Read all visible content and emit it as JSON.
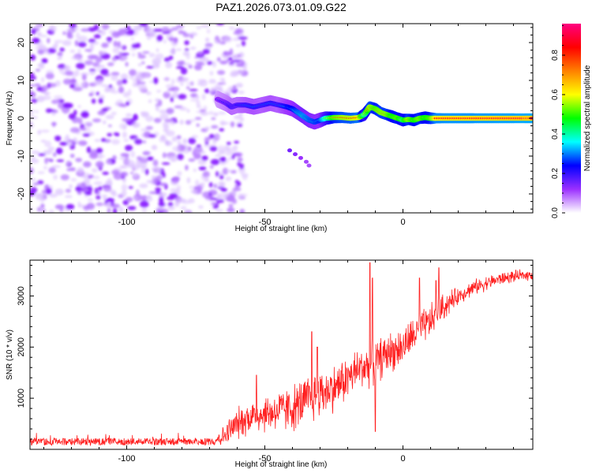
{
  "figure_title": "PAZ1.2026.073.01.09.G22",
  "chart_data": [
    {
      "type": "heatmap",
      "title": "PAZ1.2026.073.01.09.G22",
      "xlabel": "Height of straight line (km)",
      "ylabel": "Frequency (Hz)",
      "xlim": [
        -135,
        47
      ],
      "ylim": [
        -25,
        25
      ],
      "xticks": [
        -100,
        -50,
        0
      ],
      "yticks": [
        -20,
        -10,
        0,
        10,
        20
      ],
      "colorbar": {
        "label": "Normalized spectral amplitude",
        "range": [
          0,
          0.96
        ],
        "ticks": [
          0.0,
          0.2,
          0.4,
          0.6,
          0.8
        ],
        "tick_labels": [
          "0.0",
          "0.2",
          "0.4",
          "0.6",
          "0.8"
        ],
        "colormap": [
          "#ffffff",
          "#9b30ff",
          "#0000ff",
          "#00ffff",
          "#00ff00",
          "#ffff00",
          "#ff8000",
          "#ff0000",
          "#ff0080"
        ]
      },
      "noise_region": {
        "x_range": [
          -135,
          -63
        ],
        "freq_range": [
          -25,
          25
        ],
        "amplitude": 0.12
      },
      "ridge": [
        {
          "x": -67,
          "f": 5.0,
          "amp": 0.18
        },
        {
          "x": -64,
          "f": 4.0,
          "amp": 0.22
        },
        {
          "x": -62,
          "f": 3.0,
          "amp": 0.26
        },
        {
          "x": -60,
          "f": 3.5,
          "amp": 0.25
        },
        {
          "x": -57,
          "f": 3.5,
          "amp": 0.28
        },
        {
          "x": -54,
          "f": 3.0,
          "amp": 0.3
        },
        {
          "x": -51,
          "f": 3.5,
          "amp": 0.28
        },
        {
          "x": -48,
          "f": 4.0,
          "amp": 0.3
        },
        {
          "x": -45,
          "f": 3.5,
          "amp": 0.28
        },
        {
          "x": -42,
          "f": 3.0,
          "amp": 0.34
        },
        {
          "x": -40,
          "f": 2.5,
          "amp": 0.36
        },
        {
          "x": -38,
          "f": 1.5,
          "amp": 0.42
        },
        {
          "x": -36,
          "f": 0.5,
          "amp": 0.45
        },
        {
          "x": -34,
          "f": -0.5,
          "amp": 0.42
        },
        {
          "x": -32,
          "f": -1.0,
          "amp": 0.4
        },
        {
          "x": -30,
          "f": -0.5,
          "amp": 0.38
        },
        {
          "x": -28,
          "f": 0.0,
          "amp": 0.55
        },
        {
          "x": -25,
          "f": 0.2,
          "amp": 0.75
        },
        {
          "x": -22,
          "f": 0.2,
          "amp": 0.82
        },
        {
          "x": -19,
          "f": 0.0,
          "amp": 0.84
        },
        {
          "x": -16,
          "f": 0.2,
          "amp": 0.88
        },
        {
          "x": -14,
          "f": 1.0,
          "amp": 0.6
        },
        {
          "x": -12,
          "f": 3.0,
          "amp": 0.82
        },
        {
          "x": -10,
          "f": 2.5,
          "amp": 0.75
        },
        {
          "x": -8,
          "f": 1.5,
          "amp": 0.8
        },
        {
          "x": -6,
          "f": 1.0,
          "amp": 0.8
        },
        {
          "x": -4,
          "f": 0.5,
          "amp": 0.7
        },
        {
          "x": -2,
          "f": 0.0,
          "amp": 0.75
        },
        {
          "x": 0,
          "f": -0.5,
          "amp": 0.65
        },
        {
          "x": 2,
          "f": -0.3,
          "amp": 0.8
        },
        {
          "x": 4,
          "f": -0.5,
          "amp": 0.7
        },
        {
          "x": 6,
          "f": 0.0,
          "amp": 0.78
        },
        {
          "x": 8,
          "f": 0.2,
          "amp": 0.7
        },
        {
          "x": 10,
          "f": 0.0,
          "amp": 0.75
        },
        {
          "x": 12,
          "f": 0.0,
          "amp": 0.9
        },
        {
          "x": 16,
          "f": 0.0,
          "amp": 0.92
        },
        {
          "x": 20,
          "f": 0.0,
          "amp": 0.92
        },
        {
          "x": 24,
          "f": 0.0,
          "amp": 0.92
        },
        {
          "x": 28,
          "f": 0.0,
          "amp": 0.93
        },
        {
          "x": 32,
          "f": 0.0,
          "amp": 0.93
        },
        {
          "x": 36,
          "f": 0.0,
          "amp": 0.94
        },
        {
          "x": 40,
          "f": 0.0,
          "amp": 0.94
        },
        {
          "x": 44,
          "f": 0.0,
          "amp": 0.95
        },
        {
          "x": 47,
          "f": 0.0,
          "amp": 0.95
        }
      ],
      "side_branch": [
        {
          "x": -41,
          "f": -8.5,
          "amp": 0.22
        },
        {
          "x": -39,
          "f": -9.5,
          "amp": 0.2
        },
        {
          "x": -37,
          "f": -10.5,
          "amp": 0.18
        },
        {
          "x": -35,
          "f": -11.5,
          "amp": 0.16
        },
        {
          "x": -34,
          "f": -12.5,
          "amp": 0.15
        }
      ]
    },
    {
      "type": "line",
      "xlabel": "Height of straight line (km)",
      "ylabel": "SNR (10 * v/v)",
      "xlim": [
        -135,
        47
      ],
      "ylim": [
        0,
        3700
      ],
      "xticks": [
        -100,
        -50,
        0
      ],
      "yticks": [
        1000,
        2000,
        3000
      ],
      "color": "#ff2020",
      "trend": [
        {
          "x": -135,
          "y": 150
        },
        {
          "x": -110,
          "y": 150
        },
        {
          "x": -70,
          "y": 150
        },
        {
          "x": -65,
          "y": 250
        },
        {
          "x": -60,
          "y": 500
        },
        {
          "x": -55,
          "y": 650
        },
        {
          "x": -50,
          "y": 700
        },
        {
          "x": -45,
          "y": 750
        },
        {
          "x": -40,
          "y": 800
        },
        {
          "x": -35,
          "y": 950
        },
        {
          "x": -30,
          "y": 1100
        },
        {
          "x": -25,
          "y": 1200
        },
        {
          "x": -20,
          "y": 1400
        },
        {
          "x": -15,
          "y": 1600
        },
        {
          "x": -10,
          "y": 1700
        },
        {
          "x": -5,
          "y": 1900
        },
        {
          "x": 0,
          "y": 2000
        },
        {
          "x": 5,
          "y": 2300
        },
        {
          "x": 10,
          "y": 2500
        },
        {
          "x": 15,
          "y": 2800
        },
        {
          "x": 20,
          "y": 3000
        },
        {
          "x": 25,
          "y": 3150
        },
        {
          "x": 30,
          "y": 3250
        },
        {
          "x": 35,
          "y": 3330
        },
        {
          "x": 40,
          "y": 3380
        },
        {
          "x": 47,
          "y": 3420
        }
      ],
      "noise_envelope": [
        {
          "x": -135,
          "amp": 60
        },
        {
          "x": -70,
          "amp": 60
        },
        {
          "x": -62,
          "amp": 350
        },
        {
          "x": -50,
          "amp": 450
        },
        {
          "x": -35,
          "amp": 600
        },
        {
          "x": -25,
          "amp": 550
        },
        {
          "x": -10,
          "amp": 500
        },
        {
          "x": 0,
          "amp": 450
        },
        {
          "x": 12,
          "amp": 400
        },
        {
          "x": 20,
          "amp": 200
        },
        {
          "x": 47,
          "amp": 120
        }
      ],
      "spikes": [
        {
          "x": -12,
          "y": 3650
        },
        {
          "x": -11,
          "y": 3350
        },
        {
          "x": -10,
          "y": 350
        },
        {
          "x": 12,
          "y": 3300
        },
        {
          "x": 13,
          "y": 3550
        },
        {
          "x": -33,
          "y": 2300
        },
        {
          "x": -31,
          "y": 2000
        },
        {
          "x": -53,
          "y": 1450
        },
        {
          "x": 6,
          "y": 3350
        }
      ]
    }
  ]
}
